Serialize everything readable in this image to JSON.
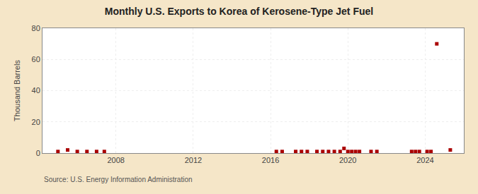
{
  "chart_data": {
    "type": "scatter",
    "title": "Monthly U.S. Exports to Korea of Kerosene-Type Jet Fuel",
    "ylabel": "Thousand Barrels",
    "annotations": [
      "Source: U.S. Energy Information Administration"
    ],
    "x": [
      2005.0,
      2005.5,
      2006.0,
      2006.5,
      2007.0,
      2007.4,
      2016.3,
      2016.6,
      2017.3,
      2017.6,
      2017.9,
      2018.4,
      2018.7,
      2019.0,
      2019.3,
      2019.6,
      2019.8,
      2020.0,
      2020.2,
      2020.4,
      2020.6,
      2021.2,
      2021.5,
      2023.3,
      2023.5,
      2023.7,
      2024.1,
      2024.3,
      2024.6,
      2025.3
    ],
    "values": [
      1,
      2,
      1,
      1,
      1,
      1,
      1,
      1,
      1,
      1,
      1,
      1,
      1,
      1,
      1,
      1,
      3,
      1,
      1,
      1,
      1,
      1,
      1,
      1,
      1,
      1,
      1,
      1,
      70,
      2
    ],
    "color": "#aa0000",
    "marker": "square",
    "xlim": [
      2004.2,
      2026.0
    ],
    "xticks": [
      2008,
      2012,
      2016,
      2020,
      2024
    ],
    "ylim": [
      0,
      80
    ],
    "yticks": [
      0,
      20,
      40,
      60,
      80
    ],
    "grid": true
  }
}
